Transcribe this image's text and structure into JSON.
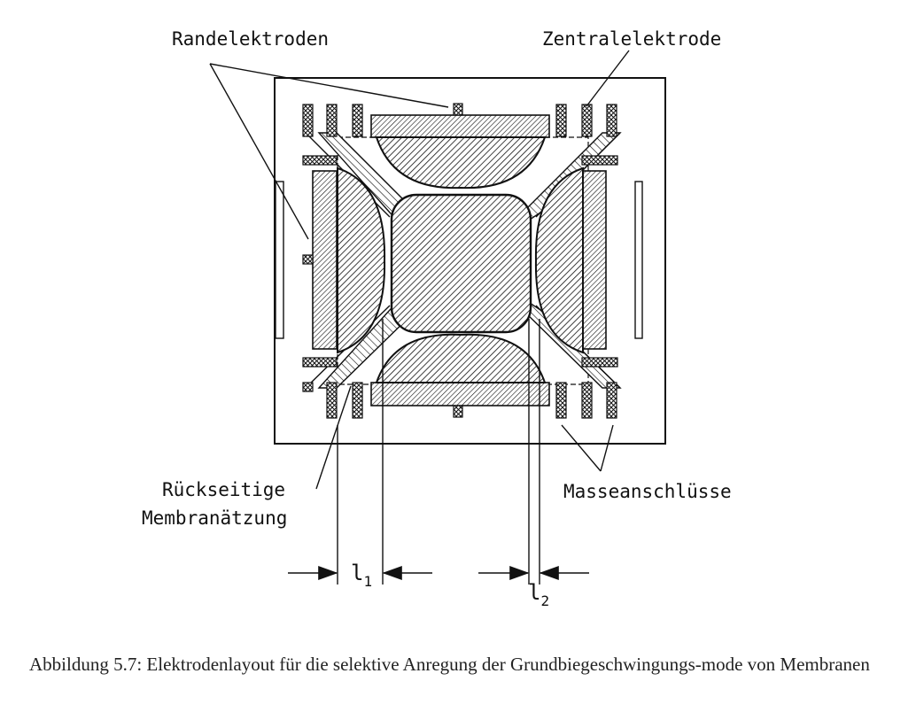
{
  "labels": {
    "rand": "Randelektroden",
    "zentral": "Zentralelektrode",
    "rueck1": "Rückseitige",
    "rueck2": "Membranätzung",
    "masse": "Masseanschlüsse"
  },
  "dimensions": {
    "l1_base": "l",
    "l1_sub": "1",
    "l2_base": "l",
    "l2_sub": "2"
  },
  "caption": {
    "text": "Abbildung 5.7: Elektrodenlayout für die selektive Anregung der Grundbiegeschwingungs-mode von Membranen"
  }
}
